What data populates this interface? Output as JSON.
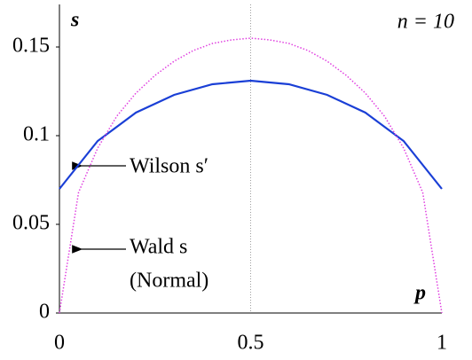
{
  "chart_data": {
    "type": "line",
    "ylabel": "s",
    "xlabel": "p",
    "annotation": "n = 10",
    "xlim": [
      0,
      1
    ],
    "ylim": [
      0,
      0.174
    ],
    "xticks": [
      0,
      0.5,
      1
    ],
    "yticks": [
      0,
      0.05,
      0.1,
      0.15
    ],
    "center_line": 0.5,
    "series": [
      {
        "name": "Wilson s′",
        "color": "#1a3fd6",
        "dashed": false,
        "x": [
          0,
          0.1,
          0.2,
          0.3,
          0.4,
          0.5,
          0.6,
          0.7,
          0.8,
          0.9,
          1
        ],
        "values": [
          0.07,
          0.097,
          0.113,
          0.123,
          0.129,
          0.131,
          0.129,
          0.123,
          0.113,
          0.097,
          0.07
        ]
      },
      {
        "name": "Wald s",
        "note": "(Normal)",
        "color": "#e040e0",
        "dashed": true,
        "x": [
          0,
          0.05,
          0.1,
          0.15,
          0.2,
          0.25,
          0.3,
          0.35,
          0.4,
          0.45,
          0.5,
          0.55,
          0.6,
          0.65,
          0.7,
          0.75,
          0.8,
          0.85,
          0.9,
          0.95,
          1
        ],
        "values": [
          0,
          0.068,
          0.093,
          0.111,
          0.124,
          0.134,
          0.142,
          0.148,
          0.152,
          0.154,
          0.155,
          0.154,
          0.152,
          0.148,
          0.142,
          0.134,
          0.124,
          0.111,
          0.093,
          0.068,
          0
        ]
      }
    ]
  }
}
